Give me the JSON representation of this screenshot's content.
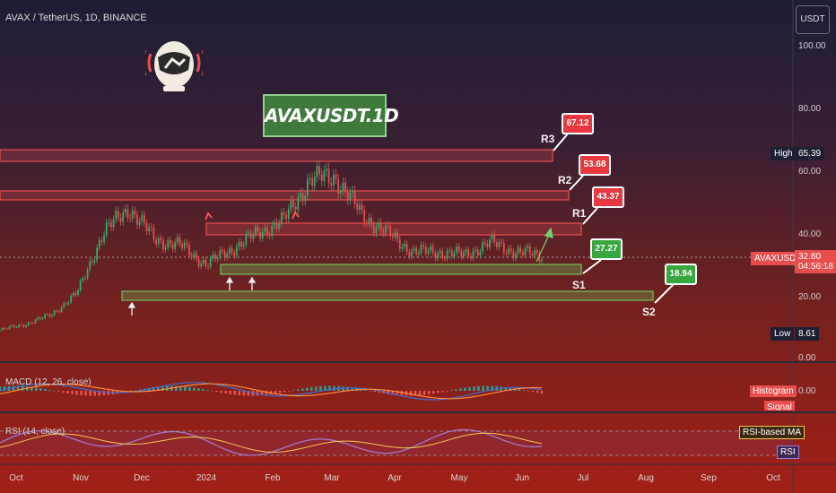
{
  "header": {
    "title": "AVAX / TetherUS, 1D, BINANCE",
    "currency_button": "USDT"
  },
  "symbol_box": "AVAXUSDT.1D",
  "levels": {
    "r3": {
      "label": "R3",
      "value": "67.12"
    },
    "r2": {
      "label": "R2",
      "value": "53.68"
    },
    "r1": {
      "label": "R1",
      "value": "43.37"
    },
    "s1": {
      "label": "S1",
      "value": "27.27"
    },
    "s2": {
      "label": "S2",
      "value": "18.94"
    }
  },
  "price_axis": {
    "ticks": [
      "100.00",
      "80.00",
      "60.00",
      "40.00",
      "20.00",
      "0.00"
    ],
    "high_label": "High",
    "high_value": "65.39",
    "low_label": "Low",
    "low_value": "8.61",
    "symbol_tag": "AVAXUSDT",
    "last_price": "32.80",
    "countdown": "04:56:18"
  },
  "macd": {
    "label": "MACD (12, 26, close)",
    "histogram_tag": "Histogram",
    "signal_tag": "Signal",
    "zero_tick": "0.00"
  },
  "rsi": {
    "label": "RSI (14, close)",
    "ma_tag": "RSI-based MA",
    "rsi_tag": "RSI"
  },
  "time_axis": {
    "months": [
      "Oct",
      "Nov",
      "Dec",
      "2024",
      "Feb",
      "Mar",
      "Apr",
      "May",
      "Jun",
      "Jul",
      "Aug",
      "Sep",
      "Oct"
    ]
  },
  "colors": {
    "up": "#2fae6b",
    "down": "#e84e4e",
    "resistance": "#e84e4e",
    "support": "#6fc35a"
  },
  "chart_data": {
    "type": "line",
    "title": "AVAX / TetherUS, 1D, BINANCE",
    "ylim": [
      0,
      100
    ],
    "price_series": {
      "name": "AVAXUSDT",
      "points": [
        [
          "Oct",
          9
        ],
        [
          "Nov",
          11
        ],
        [
          "Nov 20",
          14
        ],
        [
          "Dec",
          21
        ],
        [
          "Dec 10",
          40
        ],
        [
          "Dec 25",
          48
        ],
        [
          "2024",
          38
        ],
        [
          "Jan 10",
          36
        ],
        [
          "Jan 20",
          30
        ],
        [
          "Feb",
          35
        ],
        [
          "Feb 15",
          40
        ],
        [
          "Mar",
          44
        ],
        [
          "Mar 10",
          57
        ],
        [
          "Mar 20",
          58
        ],
        [
          "Apr",
          46
        ],
        [
          "Apr 10",
          40
        ],
        [
          "Apr 20",
          34
        ],
        [
          "May",
          34
        ],
        [
          "May 15",
          33
        ],
        [
          "May 25",
          37
        ],
        [
          "Jun",
          34
        ],
        [
          "Jun 10",
          32.8
        ]
      ]
    },
    "resistance_zones": [
      {
        "name": "R3",
        "value": 67.12
      },
      {
        "name": "R2",
        "value": 53.68
      },
      {
        "name": "R1",
        "value": 43.37
      }
    ],
    "support_zones": [
      {
        "name": "S1",
        "value": 27.27
      },
      {
        "name": "S2",
        "value": 18.94
      }
    ],
    "high": 65.39,
    "low": 8.61,
    "last": 32.8
  }
}
